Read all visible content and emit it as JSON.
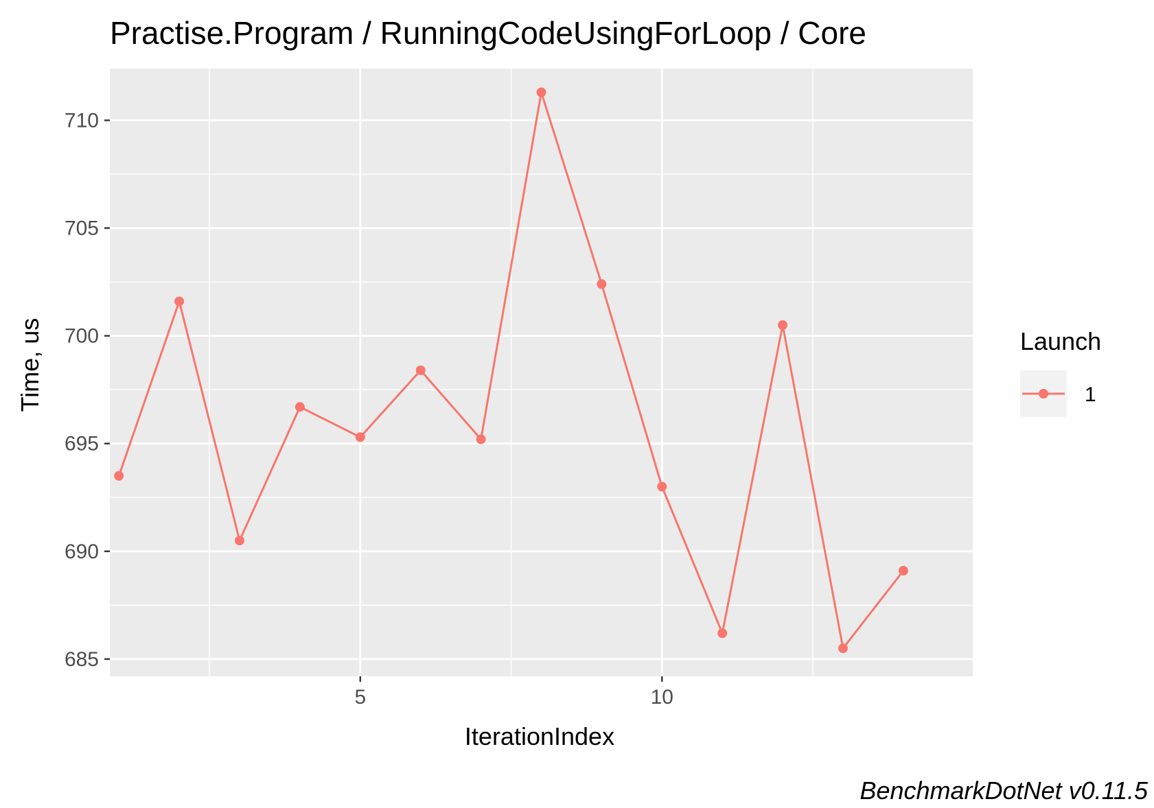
{
  "chart_data": {
    "type": "line",
    "title": "Practise.Program / RunningCodeUsingForLoop / Core",
    "xlabel": "IterationIndex",
    "ylabel": "Time, us",
    "caption": "BenchmarkDotNet v0.11.5",
    "x_ticks": [
      5,
      10
    ],
    "y_ticks": [
      685,
      690,
      695,
      700,
      705,
      710
    ],
    "xlim": [
      0.85,
      15.15
    ],
    "ylim": [
      684.2,
      712.4
    ],
    "grid": true,
    "legend": {
      "title": "Launch",
      "position": "right"
    },
    "series": [
      {
        "name": "1",
        "color": "#F8766D",
        "x": [
          1,
          2,
          3,
          4,
          5,
          6,
          7,
          8,
          9,
          10,
          11,
          12,
          13,
          14
        ],
        "y": [
          693.5,
          701.6,
          690.5,
          696.7,
          695.3,
          698.4,
          695.2,
          711.3,
          702.4,
          693.0,
          686.2,
          700.5,
          685.5,
          689.1
        ]
      }
    ]
  },
  "colors": {
    "panel_background": "#EBEBEB",
    "grid_major": "#FFFFFF",
    "series": "#F8766D"
  }
}
